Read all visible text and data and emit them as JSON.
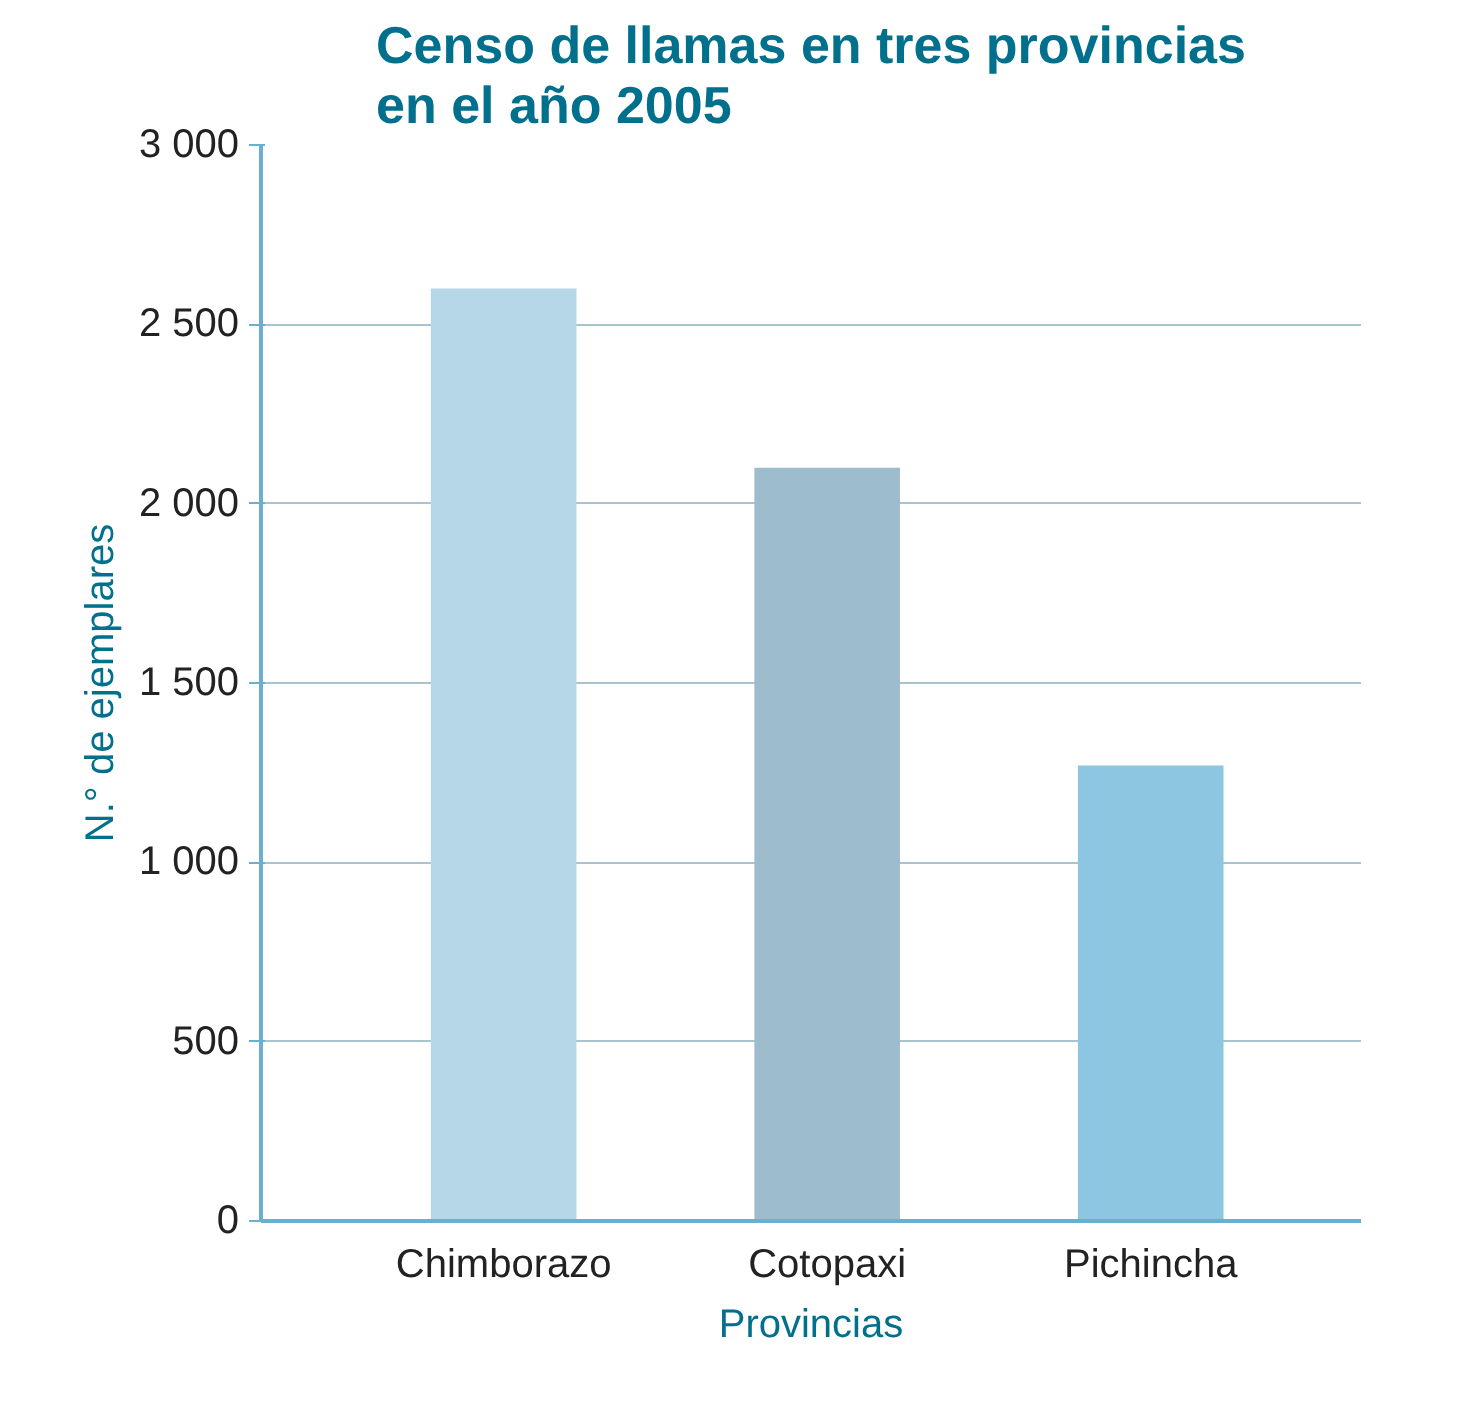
{
  "chart_data": {
    "type": "bar",
    "title": "Censo de llamas en tres provincias\nen el año 2005",
    "xlabel": "Provincias",
    "ylabel": "N.° de ejemplares",
    "categories": [
      "Chimborazo",
      "Cotopaxi",
      "Pichincha"
    ],
    "values": [
      2600,
      2100,
      1270
    ],
    "colors": [
      "#b5d7e8",
      "#9dbccc",
      "#8cc6e0"
    ],
    "ylim": [
      0,
      3000
    ],
    "yticks": [
      0,
      500,
      {
        "value": 1000,
        "label": "1 000"
      },
      {
        "value": 1500,
        "label": "1 500"
      },
      {
        "value": 2000,
        "label": "2 000"
      },
      {
        "value": 2500,
        "label": "2 500"
      },
      {
        "value": 3000,
        "label": "3 000"
      }
    ],
    "grid": "y"
  }
}
